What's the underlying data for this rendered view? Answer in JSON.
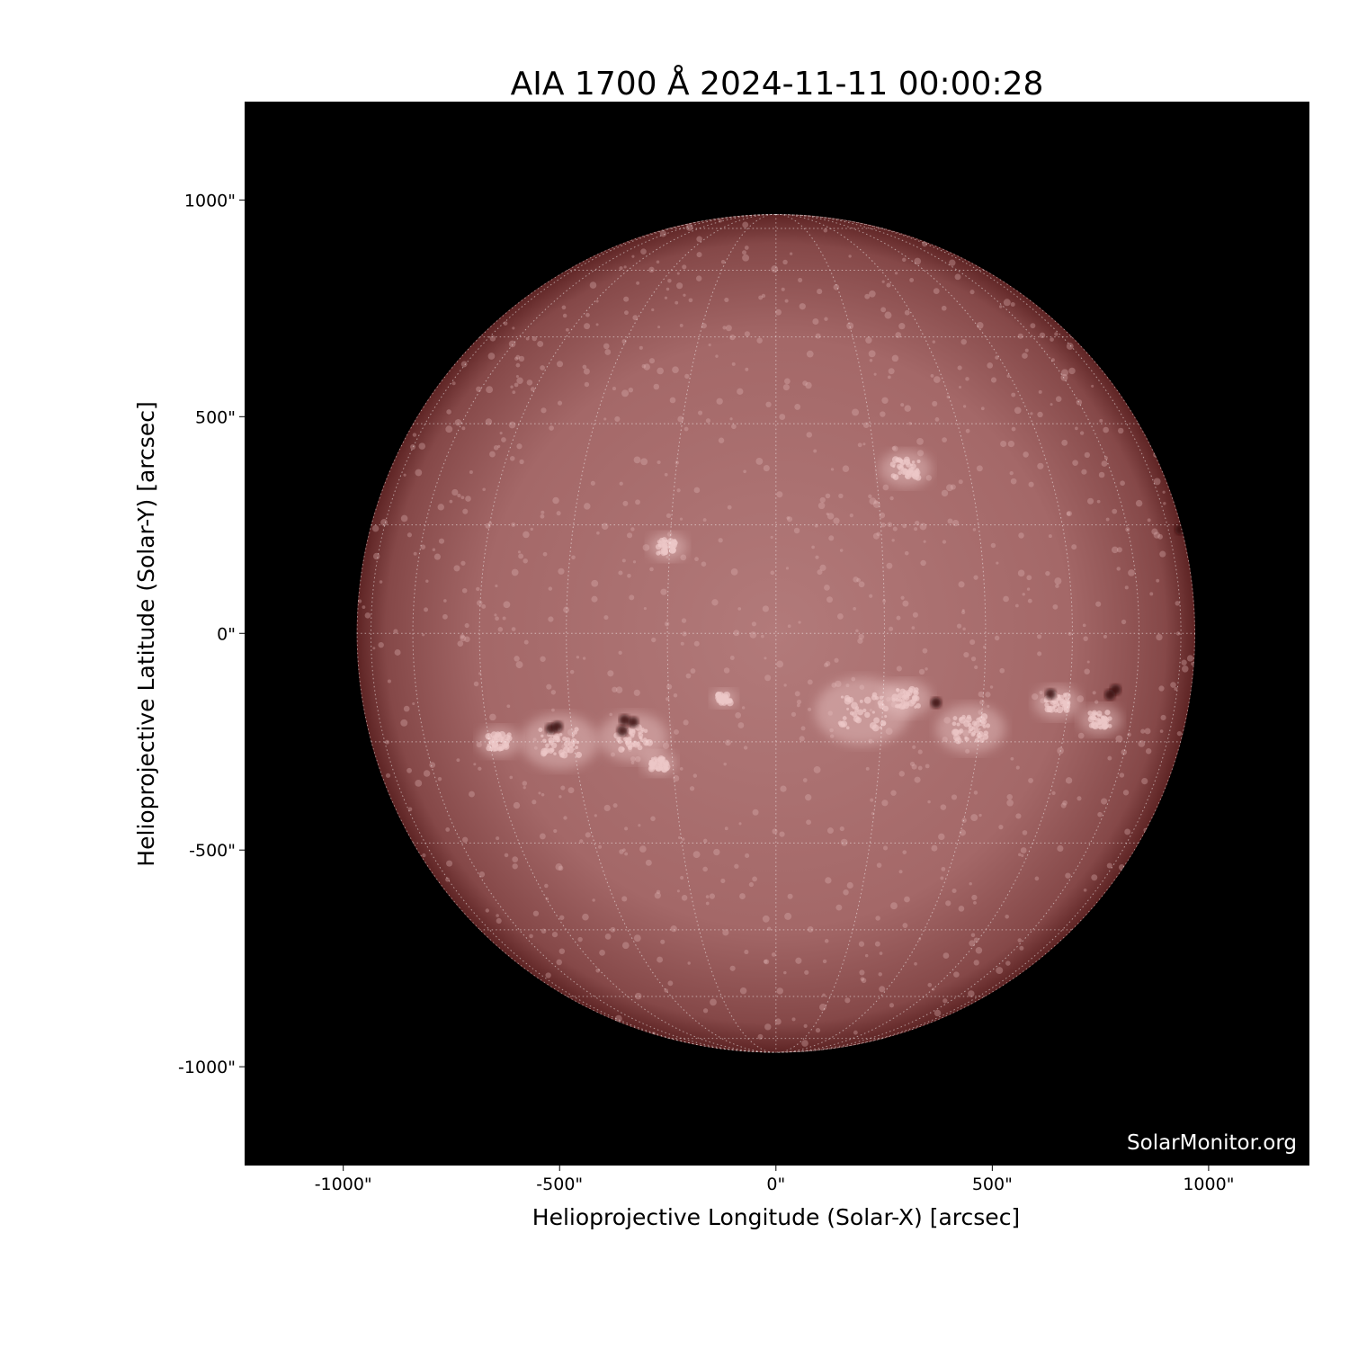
{
  "title": "AIA 1700 Å 2024-11-11 00:00:28",
  "watermark": "SolarMonitor.org",
  "axes": {
    "xlabel": "Helioprojective Longitude (Solar-X) [arcsec]",
    "ylabel": "Helioprojective Latitude (Solar-Y) [arcsec]",
    "xticks": [
      -1000,
      -500,
      0,
      500,
      1000
    ],
    "yticks": [
      1000,
      500,
      0,
      -500,
      -1000
    ],
    "xtick_labels": [
      "-1000\"",
      "-500\"",
      "0\"",
      "500\"",
      "1000\""
    ],
    "ytick_labels": [
      "1000\"",
      "500\"",
      "0\"",
      "-500\"",
      "-1000\""
    ],
    "xlim": [
      -1228,
      1233
    ],
    "ylim": [
      -1228,
      1227
    ]
  },
  "image": {
    "subject": "solar disk",
    "solar_radius_arcsec": 969,
    "grid_spacing_deg": 15,
    "colors": {
      "background": "#000000",
      "disk_center": "#b27a7a",
      "disk_limb": "#5e2424",
      "plage": "#ecc8c8",
      "sunspot": "#3a0c10",
      "grid": "#ffffff"
    },
    "sunspots_arcsec": [
      [
        -520,
        -220
      ],
      [
        -505,
        -215
      ],
      [
        -350,
        -200
      ],
      [
        -355,
        -225
      ],
      [
        -330,
        -205
      ],
      [
        370,
        -160
      ],
      [
        635,
        -140
      ],
      [
        785,
        -130
      ],
      [
        772,
        -142
      ],
      [
        935,
        240
      ]
    ],
    "plage_arcsec": [
      [
        -500,
        -250,
        90
      ],
      [
        -640,
        -250,
        50
      ],
      [
        -330,
        -240,
        80
      ],
      [
        -270,
        -300,
        40
      ],
      [
        200,
        -180,
        110
      ],
      [
        300,
        -150,
        60
      ],
      [
        450,
        -220,
        80
      ],
      [
        650,
        -160,
        55
      ],
      [
        750,
        -200,
        50
      ],
      [
        -250,
        200,
        45
      ],
      [
        300,
        380,
        60
      ],
      [
        -120,
        -150,
        30
      ]
    ]
  }
}
